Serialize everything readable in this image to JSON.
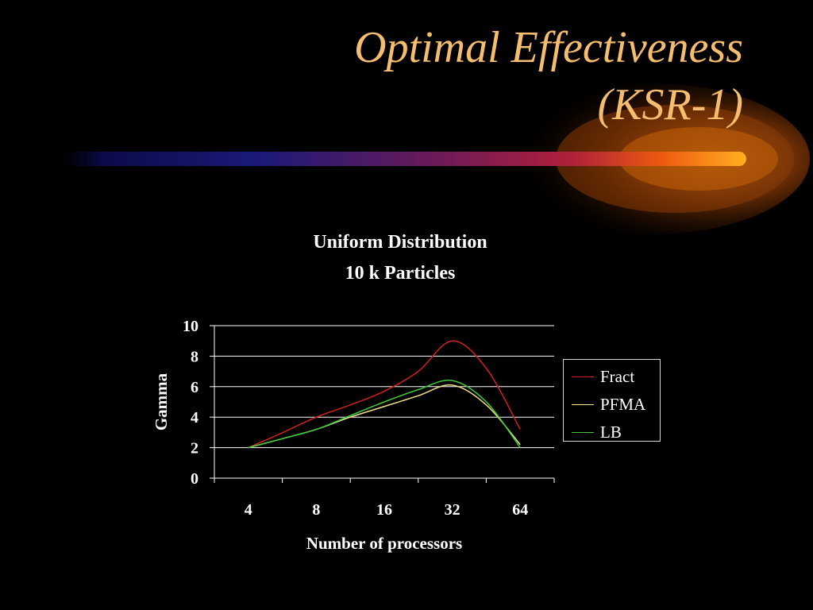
{
  "slide": {
    "title_line1": "Optimal Effectiveness",
    "title_line2": "(KSR-1)"
  },
  "colors": {
    "background": "#000000",
    "title": "#f5bd6e",
    "fract": "#d11f1f",
    "pfma": "#f0e08a",
    "lb": "#3cc83c"
  },
  "chart_data": {
    "type": "line",
    "title": "Uniform Distribution",
    "subtitle": "10 k Particles",
    "xlabel": "Number of processors",
    "ylabel": "Gamma",
    "categories": [
      "4",
      "8",
      "16",
      "32",
      "64"
    ],
    "ylim": [
      0,
      10
    ],
    "yticks": [
      "0",
      "2",
      "4",
      "6",
      "8",
      "10"
    ],
    "grid": true,
    "legend_position": "right",
    "series": [
      {
        "name": "Fract",
        "color": "#d11f1f",
        "x": [
          4,
          5.7,
          8,
          11.3,
          16,
          22.6,
          32,
          45.3,
          64
        ],
        "values": [
          2.0,
          3.0,
          4.0,
          4.8,
          5.7,
          7.0,
          9.0,
          7.2,
          3.2
        ]
      },
      {
        "name": "PFMA",
        "color": "#f0e08a",
        "x": [
          4,
          5.7,
          8,
          11.3,
          16,
          22.6,
          32,
          45.3,
          64
        ],
        "values": [
          2.0,
          2.6,
          3.2,
          4.0,
          4.7,
          5.4,
          6.1,
          4.8,
          2.2
        ]
      },
      {
        "name": "LB",
        "color": "#3cc83c",
        "x": [
          4,
          5.7,
          8,
          11.3,
          16,
          22.6,
          32,
          45.3,
          64
        ],
        "values": [
          2.0,
          2.6,
          3.2,
          4.1,
          5.0,
          5.8,
          6.4,
          5.0,
          2.0
        ]
      }
    ]
  }
}
